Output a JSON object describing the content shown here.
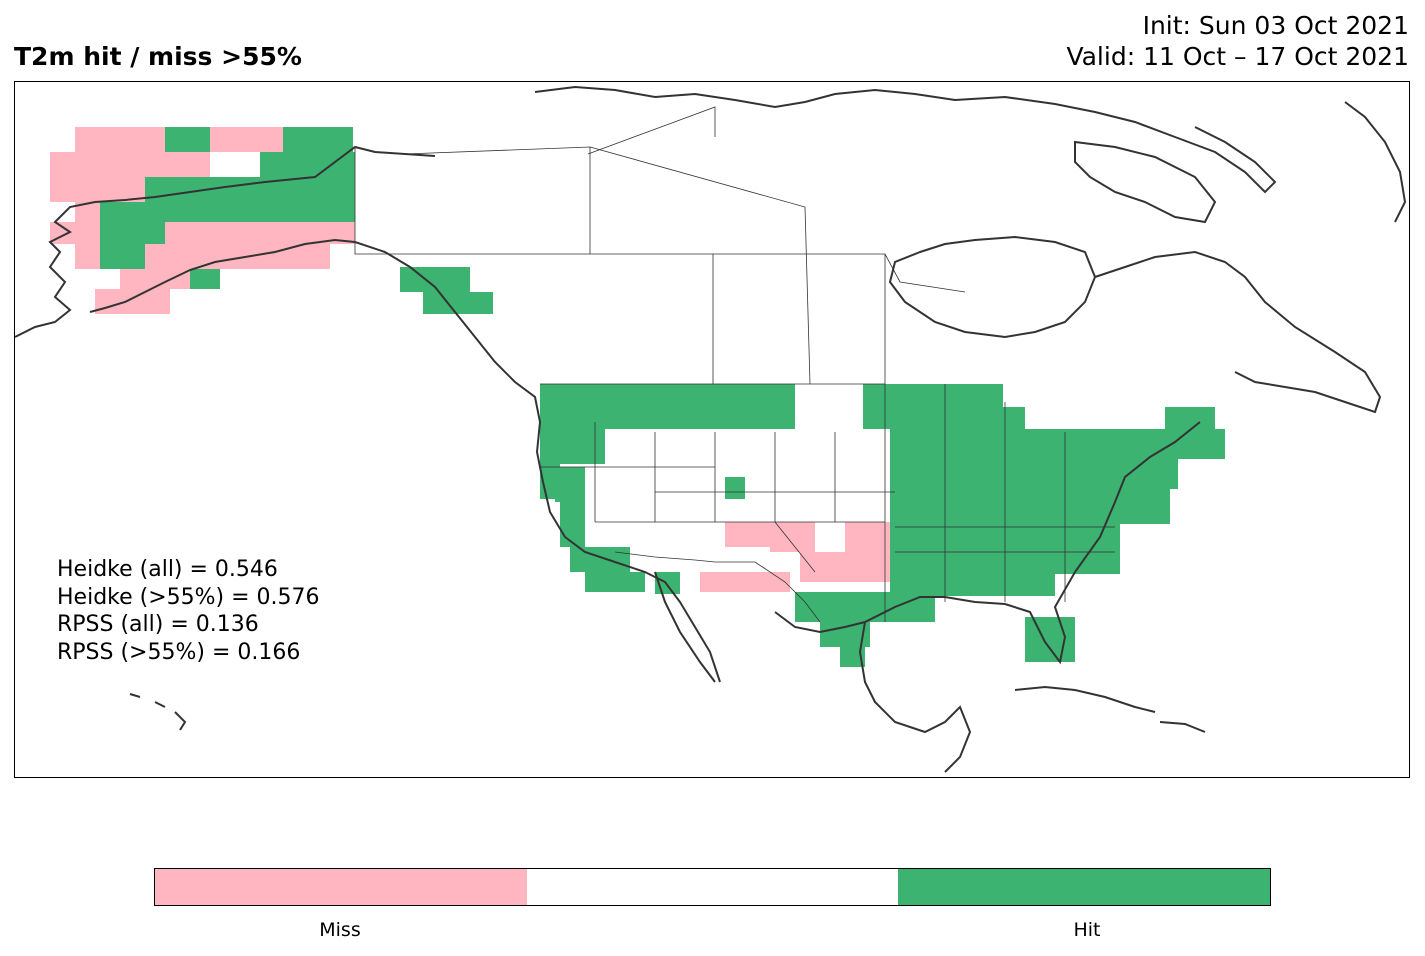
{
  "header": {
    "title": "T2m hit / miss  >55%",
    "init": "Init: Sun 03 Oct 2021",
    "valid": "Valid: 11 Oct – 17 Oct 2021"
  },
  "stats": [
    "Heidke (all) = 0.546",
    "Heidke (>55%) = 0.576",
    "RPSS (all) = 0.136",
    "RPSS (>55%) = 0.166"
  ],
  "colorbar": {
    "segments": [
      {
        "color": "#ffb6c1",
        "label": "Miss"
      },
      {
        "color": "#ffffff",
        "label": ""
      },
      {
        "color": "#3cb371",
        "label": "Hit"
      }
    ]
  },
  "map": {
    "hit_color": "#3cb371",
    "miss_color": "#ffb6c1",
    "coastline_color": "#333333",
    "border_color": "#333333"
  }
}
